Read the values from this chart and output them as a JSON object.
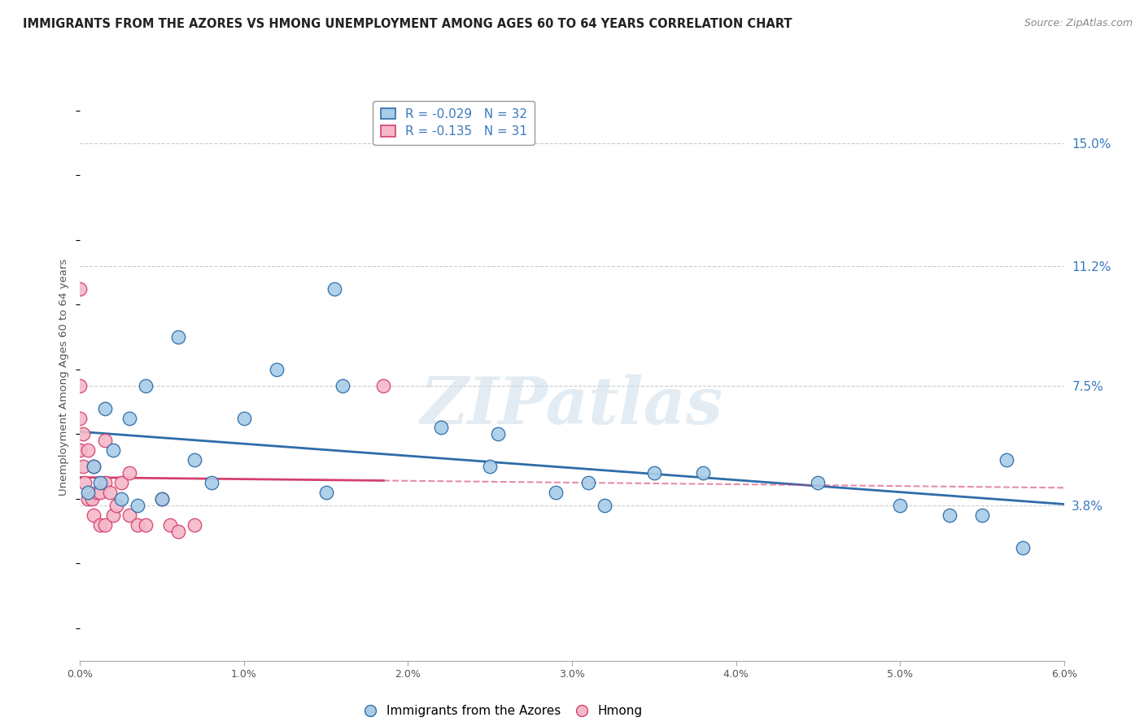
{
  "title": "IMMIGRANTS FROM THE AZORES VS HMONG UNEMPLOYMENT AMONG AGES 60 TO 64 YEARS CORRELATION CHART",
  "source": "Source: ZipAtlas.com",
  "ylabel": "Unemployment Among Ages 60 to 64 years",
  "xlim": [
    0.0,
    6.0
  ],
  "ylim": [
    -1.0,
    16.5
  ],
  "y_ticks_vals": [
    3.8,
    7.5,
    11.2,
    15.0
  ],
  "y_ticks_labels": [
    "3.8%",
    "7.5%",
    "11.2%",
    "15.0%"
  ],
  "x_ticks": [
    0.0,
    1.0,
    2.0,
    3.0,
    4.0,
    5.0,
    6.0
  ],
  "x_ticks_labels": [
    "0.0%",
    "1.0%",
    "2.0%",
    "3.0%",
    "4.0%",
    "5.0%",
    "6.0%"
  ],
  "legend_blue_label": "R = -0.029   N = 32",
  "legend_pink_label": "R = -0.135   N = 31",
  "legend_blue_series": "Immigrants from the Azores",
  "legend_pink_series": "Hmong",
  "blue_color": "#a8cce8",
  "pink_color": "#f5b8c8",
  "trend_blue_color": "#2e6da8",
  "trend_pink_color": "#d44070",
  "blue_x": [
    0.05,
    0.08,
    0.12,
    0.15,
    0.2,
    0.25,
    0.3,
    0.35,
    0.4,
    0.5,
    0.6,
    0.7,
    0.8,
    1.0,
    1.2,
    1.5,
    1.55,
    1.6,
    2.2,
    2.5,
    2.55,
    2.9,
    3.1,
    3.2,
    3.5,
    3.8,
    4.5,
    5.0,
    5.3,
    5.5,
    5.65,
    5.75
  ],
  "blue_y": [
    4.2,
    5.0,
    4.5,
    6.8,
    5.5,
    4.0,
    6.5,
    3.8,
    7.5,
    4.0,
    9.0,
    5.2,
    4.5,
    6.5,
    8.0,
    4.2,
    10.5,
    7.5,
    6.2,
    5.0,
    6.0,
    4.2,
    4.5,
    3.8,
    4.8,
    4.8,
    4.5,
    3.8,
    3.5,
    3.5,
    5.2,
    2.5
  ],
  "pink_x": [
    0.0,
    0.0,
    0.0,
    0.0,
    0.02,
    0.02,
    0.03,
    0.05,
    0.05,
    0.07,
    0.08,
    0.08,
    0.1,
    0.12,
    0.12,
    0.15,
    0.15,
    0.15,
    0.18,
    0.2,
    0.22,
    0.25,
    0.3,
    0.3,
    0.35,
    0.4,
    0.5,
    0.55,
    0.6,
    0.7,
    1.85
  ],
  "pink_y": [
    10.5,
    7.5,
    6.5,
    5.5,
    6.0,
    5.0,
    4.5,
    4.0,
    5.5,
    4.0,
    5.0,
    3.5,
    4.2,
    3.2,
    4.2,
    4.5,
    5.8,
    3.2,
    4.2,
    3.5,
    3.8,
    4.5,
    3.5,
    4.8,
    3.2,
    3.2,
    4.0,
    3.2,
    3.0,
    3.2,
    7.5
  ],
  "watermark": "ZIPatlas",
  "background_color": "#ffffff",
  "grid_color": "#cccccc",
  "text_color": "#3a7abf"
}
